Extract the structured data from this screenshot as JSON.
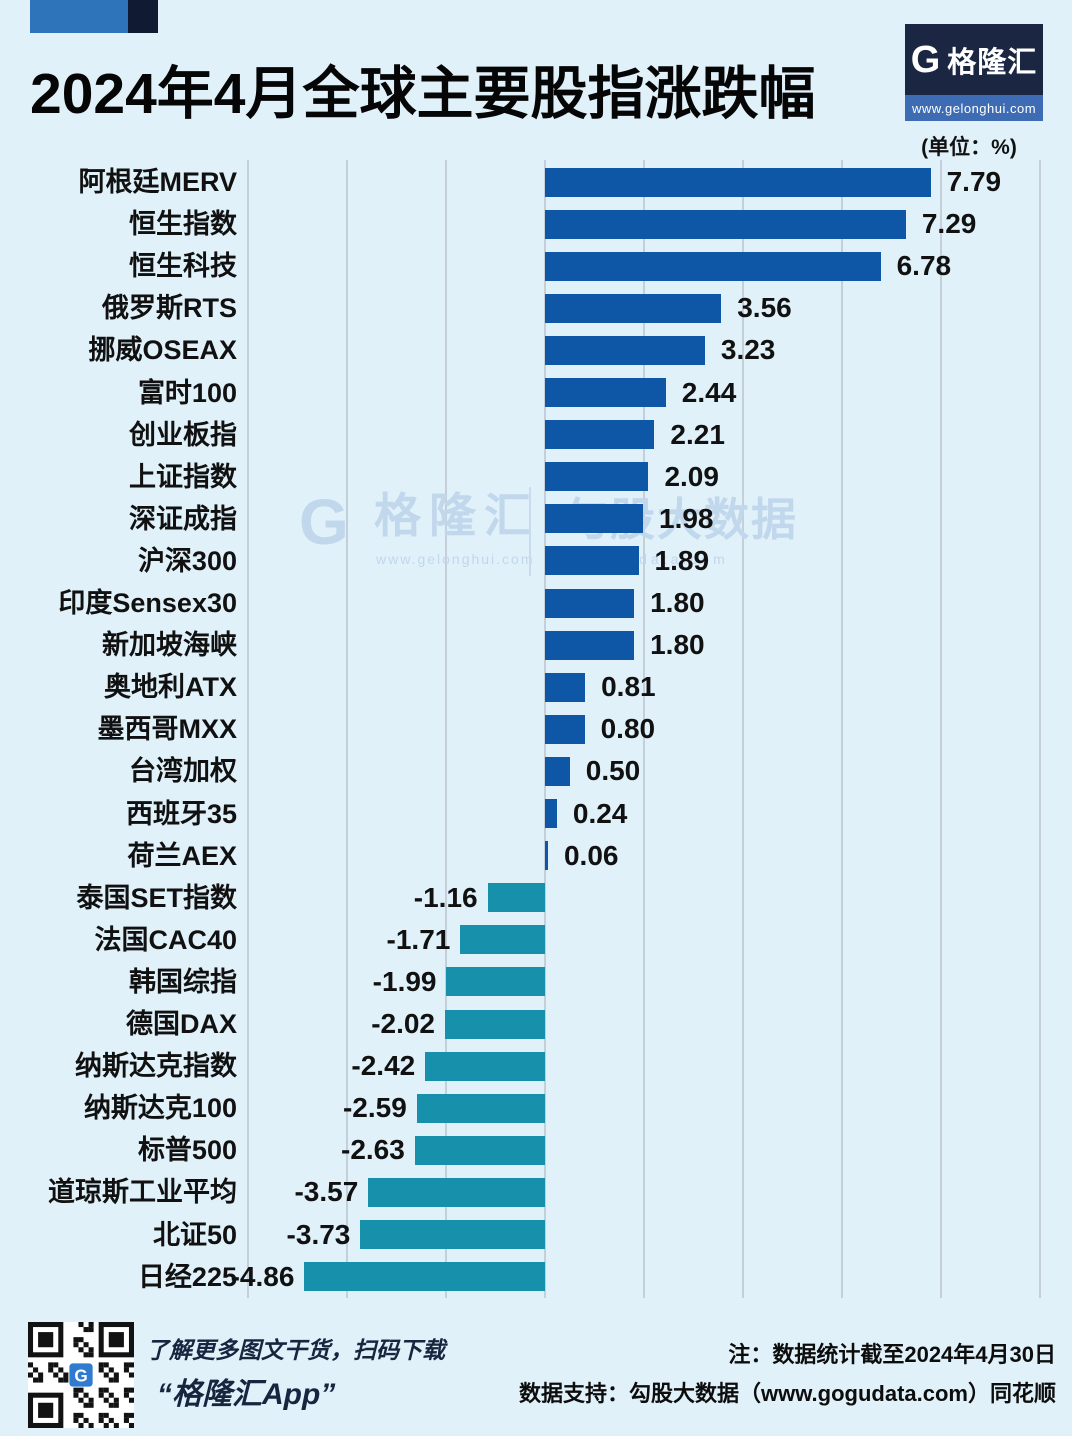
{
  "header": {
    "title": "2024年4月全球主要股指涨跌幅",
    "unit_label": "(单位：%)",
    "logo": {
      "g": "G",
      "name": "格隆汇",
      "url": "www.gelonghui.com"
    }
  },
  "chart_data": {
    "type": "bar",
    "orientation": "horizontal",
    "title": "2024年4月全球主要股指涨跌幅",
    "unit": "%",
    "xlim": [
      -6,
      10
    ],
    "gridline_step": 2,
    "grid": true,
    "legend": "none",
    "categories": [
      "阿根廷MERV",
      "恒生指数",
      "恒生科技",
      "俄罗斯RTS",
      "挪威OSEAX",
      "富时100",
      "创业板指",
      "上证指数",
      "深证成指",
      "沪深300",
      "印度Sensex30",
      "新加坡海峡",
      "奥地利ATX",
      "墨西哥MXX",
      "台湾加权",
      "西班牙35",
      "荷兰AEX",
      "泰国SET指数",
      "法国CAC40",
      "韩国综指",
      "德国DAX",
      "纳斯达克指数",
      "纳斯达克100",
      "标普500",
      "道琼斯工业平均",
      "北证50",
      "日经225"
    ],
    "values": [
      7.79,
      7.29,
      6.78,
      3.56,
      3.23,
      2.44,
      2.21,
      2.09,
      1.98,
      1.89,
      1.8,
      1.8,
      0.81,
      0.8,
      0.5,
      0.24,
      0.06,
      -1.16,
      -1.71,
      -1.99,
      -2.02,
      -2.42,
      -2.59,
      -2.63,
      -3.57,
      -3.73,
      -4.86
    ],
    "positive_color": "#0e57a6",
    "negative_color": "#1790ac"
  },
  "watermark": {
    "g": "G",
    "brand": "格隆汇",
    "brand_url": "www.gelonghui.com",
    "data_brand": "勾股大数据",
    "data_url": "gogudata.com"
  },
  "footer": {
    "qr_caption_line1": "了解更多图文干货，扫码下载",
    "qr_caption_line2": "“格隆汇App”",
    "note_line1": "注：数据统计截至2024年4月30日",
    "note_line2": "数据支持：勾股大数据（www.gogudata.com）同花顺"
  }
}
